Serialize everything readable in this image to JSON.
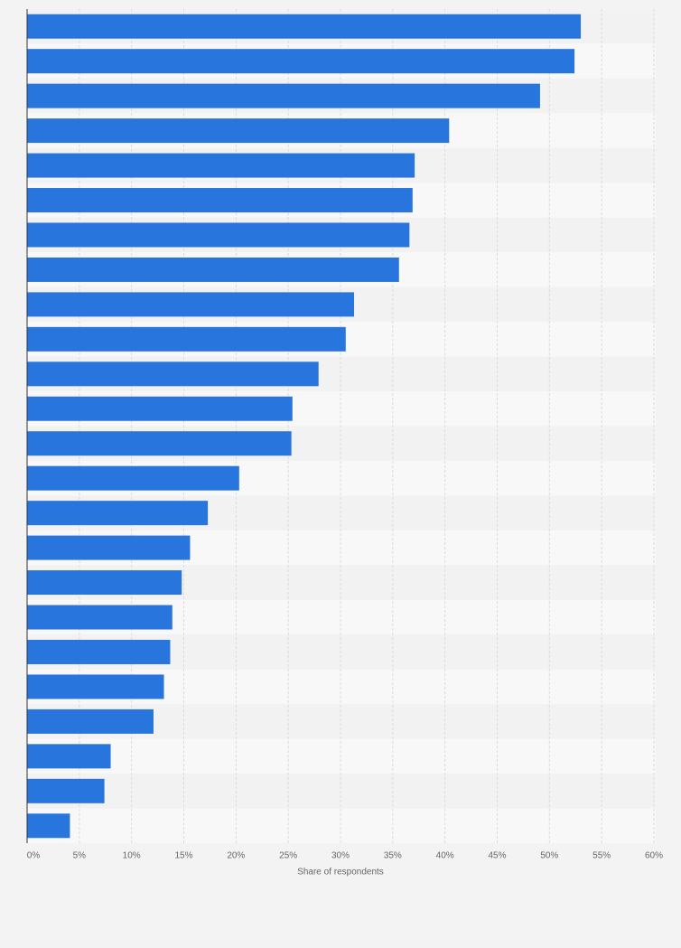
{
  "chart_data": {
    "type": "barh",
    "categories": [
      null,
      null,
      null,
      null,
      null,
      null,
      null,
      null,
      null,
      null,
      null,
      null,
      null,
      null,
      null,
      null,
      null,
      null,
      null,
      null,
      null,
      null,
      null,
      null
    ],
    "values": [
      53.0,
      52.4,
      49.1,
      40.4,
      37.1,
      36.9,
      36.6,
      35.6,
      31.3,
      30.5,
      27.9,
      25.4,
      25.3,
      20.3,
      17.3,
      15.6,
      14.8,
      13.9,
      13.7,
      13.1,
      12.1,
      8.0,
      7.4,
      4.1
    ],
    "color": "#2876dd",
    "xlabel": "Share of respondents",
    "xlim": [
      0,
      60
    ],
    "xticks": [
      {
        "value": 0,
        "label": "0%"
      },
      {
        "value": 5,
        "label": "5%"
      },
      {
        "value": 10,
        "label": "10%"
      },
      {
        "value": 15,
        "label": "15%"
      },
      {
        "value": 20,
        "label": "20%"
      },
      {
        "value": 25,
        "label": "25%"
      },
      {
        "value": 30,
        "label": "30%"
      },
      {
        "value": 35,
        "label": "35%"
      },
      {
        "value": 40,
        "label": "40%"
      },
      {
        "value": 45,
        "label": "45%"
      },
      {
        "value": 50,
        "label": "50%"
      },
      {
        "value": 55,
        "label": "55%"
      },
      {
        "value": 60,
        "label": "60%"
      }
    ],
    "grid": true
  }
}
